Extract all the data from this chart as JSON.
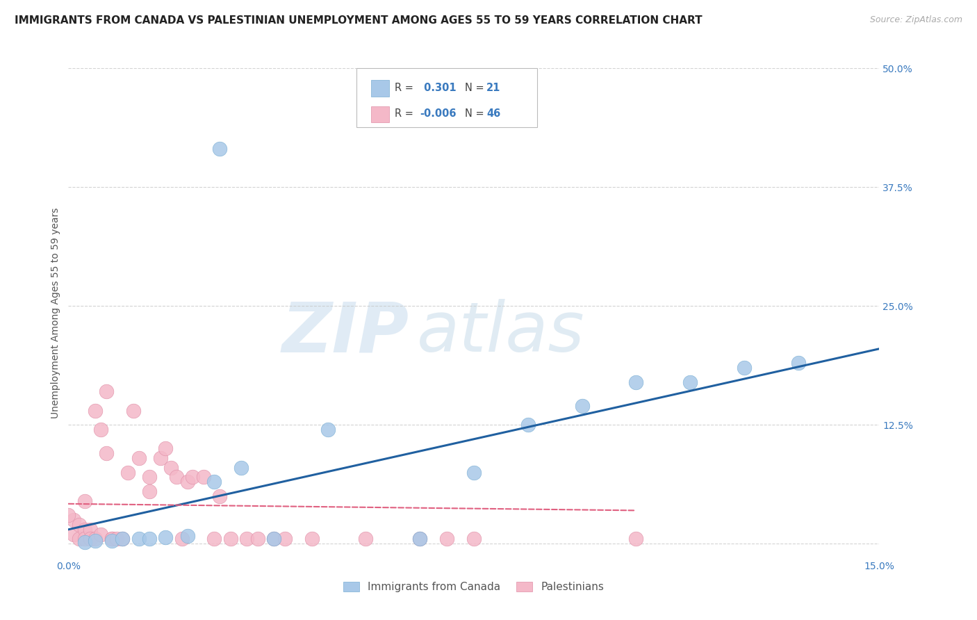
{
  "title": "IMMIGRANTS FROM CANADA VS PALESTINIAN UNEMPLOYMENT AMONG AGES 55 TO 59 YEARS CORRELATION CHART",
  "source": "Source: ZipAtlas.com",
  "ylabel": "Unemployment Among Ages 55 to 59 years",
  "xlim": [
    0.0,
    0.15
  ],
  "ylim": [
    -0.015,
    0.5
  ],
  "xticks": [
    0.0,
    0.15
  ],
  "xtick_labels": [
    "0.0%",
    "15.0%"
  ],
  "ytick_positions": [
    0.0,
    0.125,
    0.25,
    0.375,
    0.5
  ],
  "ytick_labels": [
    "",
    "12.5%",
    "25.0%",
    "37.5%",
    "50.0%"
  ],
  "canada_scatter_x": [
    0.028,
    0.003,
    0.005,
    0.008,
    0.01,
    0.013,
    0.015,
    0.018,
    0.022,
    0.027,
    0.032,
    0.038,
    0.048,
    0.065,
    0.075,
    0.085,
    0.095,
    0.105,
    0.115,
    0.125,
    0.135
  ],
  "canada_scatter_y": [
    0.415,
    0.002,
    0.003,
    0.003,
    0.005,
    0.005,
    0.005,
    0.007,
    0.008,
    0.065,
    0.08,
    0.005,
    0.12,
    0.005,
    0.075,
    0.125,
    0.145,
    0.17,
    0.17,
    0.185,
    0.19
  ],
  "palestine_scatter_x": [
    0.001,
    0.001,
    0.002,
    0.002,
    0.003,
    0.003,
    0.003,
    0.004,
    0.004,
    0.005,
    0.005,
    0.006,
    0.006,
    0.007,
    0.007,
    0.008,
    0.008,
    0.009,
    0.01,
    0.011,
    0.012,
    0.013,
    0.015,
    0.015,
    0.017,
    0.018,
    0.019,
    0.02,
    0.021,
    0.022,
    0.023,
    0.025,
    0.027,
    0.028,
    0.03,
    0.033,
    0.035,
    0.038,
    0.04,
    0.045,
    0.055,
    0.065,
    0.07,
    0.075,
    0.105,
    0.0
  ],
  "palestine_scatter_y": [
    0.025,
    0.01,
    0.02,
    0.005,
    0.045,
    0.015,
    0.005,
    0.015,
    0.005,
    0.14,
    0.005,
    0.12,
    0.01,
    0.16,
    0.095,
    0.005,
    0.005,
    0.005,
    0.005,
    0.075,
    0.14,
    0.09,
    0.055,
    0.07,
    0.09,
    0.1,
    0.08,
    0.07,
    0.005,
    0.065,
    0.07,
    0.07,
    0.005,
    0.05,
    0.005,
    0.005,
    0.005,
    0.005,
    0.005,
    0.005,
    0.005,
    0.005,
    0.005,
    0.005,
    0.005,
    0.03
  ],
  "canada_line_x0": 0.0,
  "canada_line_y0": 0.015,
  "canada_line_x1": 0.15,
  "canada_line_y1": 0.205,
  "palestine_line_x0": 0.0,
  "palestine_line_y0": 0.042,
  "palestine_line_x1": 0.105,
  "palestine_line_y1": 0.035,
  "canada_color": "#a8c8e8",
  "canada_edge_color": "#7bafd4",
  "canada_line_color": "#2060a0",
  "palestine_color": "#f4b8c8",
  "palestine_edge_color": "#e090a8",
  "palestine_line_color": "#e06080",
  "background_color": "#ffffff",
  "grid_color": "#c8c8c8",
  "title_fontsize": 11,
  "axis_label_fontsize": 10,
  "tick_fontsize": 10,
  "legend_fontsize": 11
}
